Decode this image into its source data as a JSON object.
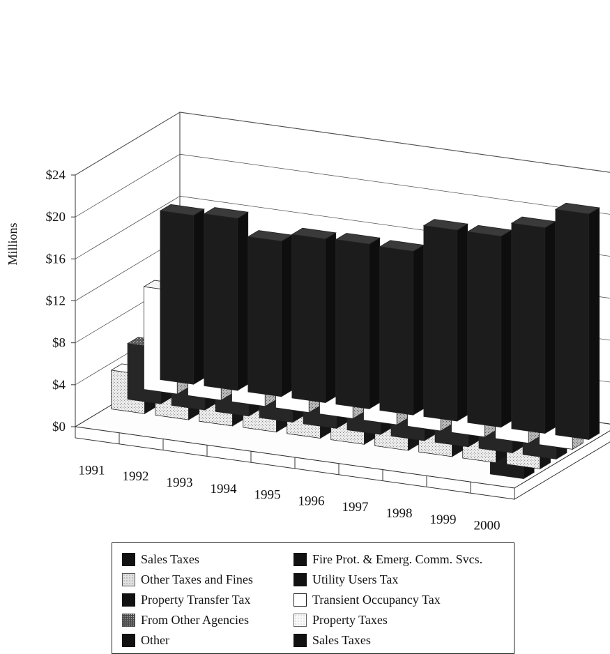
{
  "chart_data": {
    "type": "bar",
    "style": "3d-clustered",
    "title": "",
    "xlabel": "",
    "ylabel": "Millions",
    "ylim": [
      0,
      24
    ],
    "yticks": [
      "$0",
      "$4",
      "$8",
      "$12",
      "$16",
      "$20",
      "$24"
    ],
    "ytick_values": [
      0,
      4,
      8,
      12,
      16,
      20,
      24
    ],
    "grid": true,
    "legend_position": "bottom",
    "categories": [
      "1991",
      "1992",
      "1993",
      "1994",
      "1995",
      "1996",
      "1997",
      "1998",
      "1999",
      "2000"
    ],
    "series": [
      {
        "name": "Sales Taxes",
        "color": "#1a1a1a",
        "fill": "black",
        "values": [
          16.1,
          16.4,
          14.8,
          15.6,
          15.7,
          15.6,
          18.2,
          18.2,
          19.6,
          21.5
        ]
      },
      {
        "name": "Property Taxes",
        "color": "#ffffff",
        "fill": "white",
        "values": [
          9.8,
          10.2,
          10.0,
          9.3,
          9.2,
          9.6,
          9.6,
          10.2,
          10.4,
          11.4
        ]
      },
      {
        "name": "Property Transfer Tax",
        "color": "#2a2a2a",
        "fill": "dark",
        "values": [
          5.3,
          5.5,
          5.6,
          5.8,
          6.0,
          5.0,
          5.0,
          4.6,
          4.4,
          4.6
        ]
      },
      {
        "name": "Other Taxes and Fines",
        "color": "#e3e3e3",
        "fill": "stipple",
        "values": [
          3.7,
          3.6,
          4.4,
          5.4,
          5.3,
          6.2,
          6.5,
          7.9,
          8.9,
          9.6
        ]
      },
      {
        "name": "Fire Prot. & Emerg. Comm. Svcs.",
        "color": "#111111",
        "fill": "black",
        "values": [
          0,
          0,
          0,
          0,
          0,
          0,
          0,
          0,
          0,
          4.6
        ]
      }
    ]
  },
  "legend": {
    "items": [
      {
        "label": "Sales Taxes",
        "pattern": "black"
      },
      {
        "label": "Fire Prot. & Emerg. Comm. Svcs.",
        "pattern": "black"
      },
      {
        "label": "Other Taxes and Fines",
        "pattern": "stipple"
      },
      {
        "label": "Utility Users Tax",
        "pattern": "black"
      },
      {
        "label": "Property Transfer Tax",
        "pattern": "black"
      },
      {
        "label": "Transient Occupancy Tax",
        "pattern": "white"
      },
      {
        "label": "From Other Agencies",
        "pattern": "dark-speckle"
      },
      {
        "label": "Property Taxes",
        "pattern": "light-speckle"
      },
      {
        "label": "Other",
        "pattern": "black"
      },
      {
        "label": "Sales Taxes",
        "pattern": "black"
      }
    ]
  }
}
